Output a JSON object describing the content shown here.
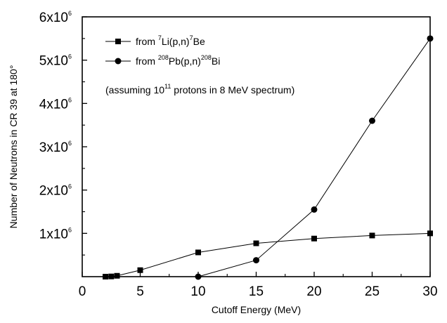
{
  "chart_data": {
    "type": "line",
    "xlabel": "Cutoff Energy (MeV)",
    "ylabel": "Number of Neutrons in CR 39 at 180°",
    "xlim": [
      0,
      30
    ],
    "ylim": [
      0,
      6000000
    ],
    "x_ticks": [
      {
        "value": 0,
        "label": "0"
      },
      {
        "value": 5,
        "label": "5"
      },
      {
        "value": 10,
        "label": "10"
      },
      {
        "value": 15,
        "label": "15"
      },
      {
        "value": 20,
        "label": "20"
      },
      {
        "value": 25,
        "label": "25"
      },
      {
        "value": 30,
        "label": "30"
      }
    ],
    "y_ticks": [
      {
        "value": 1000000,
        "mant": "1x10",
        "exp": "6"
      },
      {
        "value": 2000000,
        "mant": "2x10",
        "exp": "6"
      },
      {
        "value": 3000000,
        "mant": "3x10",
        "exp": "6"
      },
      {
        "value": 4000000,
        "mant": "4x10",
        "exp": "6"
      },
      {
        "value": 5000000,
        "mant": "5x10",
        "exp": "6"
      },
      {
        "value": 6000000,
        "mant": "6x10",
        "exp": "6"
      }
    ],
    "grid": false,
    "legend_position": "top-left",
    "series": [
      {
        "name_parts": {
          "pre": "from ",
          "s1": "7",
          "mid": "Li(p,n)",
          "s2": "7",
          "post": "Be"
        },
        "marker": "square",
        "x": [
          2,
          2.5,
          3,
          5,
          10,
          15,
          20,
          25,
          30
        ],
        "y": [
          0,
          5000,
          20000,
          150000,
          560000,
          770000,
          880000,
          950000,
          1000000
        ]
      },
      {
        "name_parts": {
          "pre": "from ",
          "s1": "208",
          "mid": "Pb(p,n)",
          "s2": "208",
          "post": "Bi"
        },
        "marker": "circle",
        "x": [
          10,
          15,
          20,
          25,
          30
        ],
        "y": [
          0,
          380000,
          1550000,
          3600000,
          5500000
        ]
      }
    ],
    "annotation": {
      "pre": "(assuming 10",
      "sup": "11",
      "post": " protons in 8 MeV spectrum)"
    }
  }
}
